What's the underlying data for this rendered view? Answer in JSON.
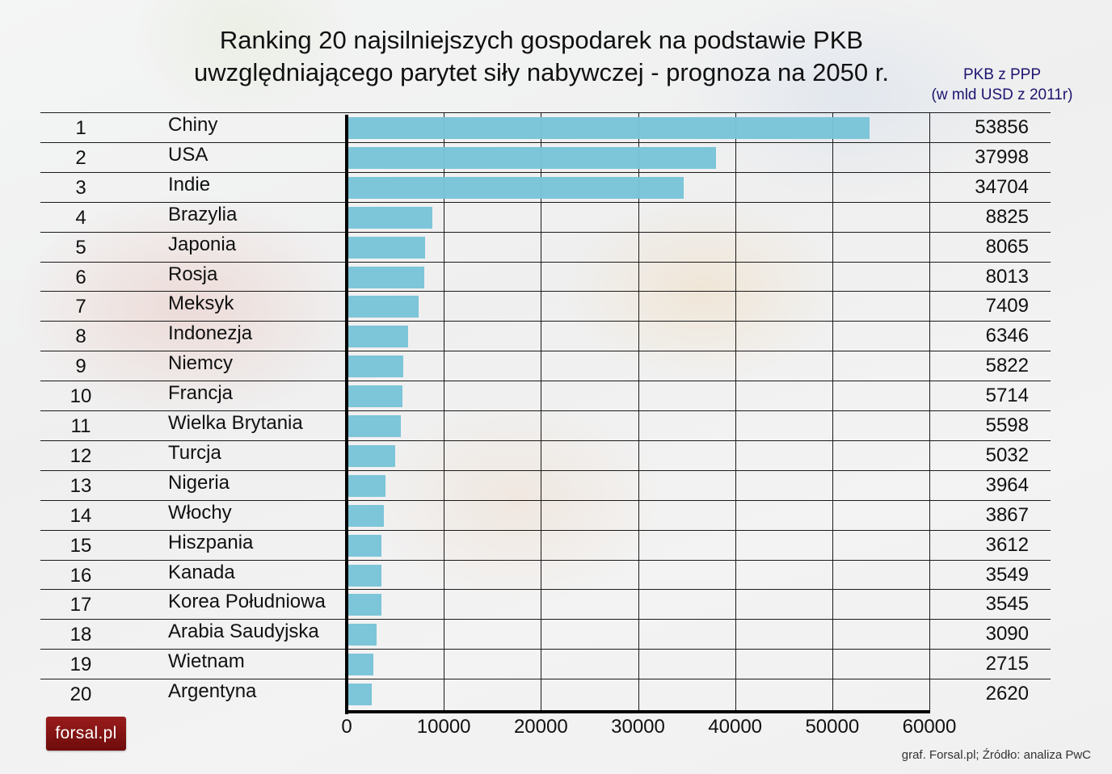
{
  "title": {
    "line1": "Ranking 20 najsilniejszych gospodarek na podstawie PKB",
    "line2": "uwzględniającego parytet siły nabywczej - prognoza na 2050 r."
  },
  "unit_label": {
    "line1": "PKB z PPP",
    "line2": "(w mld USD z 2011r)"
  },
  "logo": "forsal.pl",
  "source": "graf. Forsal.pl; Źródło: analiza PwC",
  "colors": {
    "bar": "#79c3d8",
    "unit_text": "#1c1470",
    "logo_bg": "#8a1515"
  },
  "chart_data": {
    "type": "bar",
    "orientation": "horizontal",
    "title": "Ranking 20 najsilniejszych gospodarek na podstawie PKB uwzględniającego parytet siły nabywczej - prognoza na 2050 r.",
    "xlabel": "",
    "ylabel": "",
    "value_label": "PKB z PPP (w mld USD z 2011r)",
    "xlim": [
      0,
      60000
    ],
    "x_ticks": [
      "0",
      "10000",
      "20000",
      "30000",
      "40000",
      "50000",
      "60000"
    ],
    "grid": true,
    "ranks": [
      "1",
      "2",
      "3",
      "4",
      "5",
      "6",
      "7",
      "8",
      "9",
      "10",
      "11",
      "12",
      "13",
      "14",
      "15",
      "16",
      "17",
      "18",
      "19",
      "20"
    ],
    "categories": [
      "Chiny",
      "USA",
      "Indie",
      "Brazylia",
      "Japonia",
      "Rosja",
      "Meksyk",
      "Indonezja",
      "Niemcy",
      "Francja",
      "Wielka Brytania",
      "Turcja",
      "Nigeria",
      "Włochy",
      "Hiszpania",
      "Kanada",
      "Korea Południowa",
      "Arabia Saudyjska",
      "Wietnam",
      "Argentyna"
    ],
    "values": [
      53856,
      37998,
      34704,
      8825,
      8065,
      8013,
      7409,
      6346,
      5822,
      5714,
      5598,
      5032,
      3964,
      3867,
      3612,
      3549,
      3545,
      3090,
      2715,
      2620
    ]
  }
}
